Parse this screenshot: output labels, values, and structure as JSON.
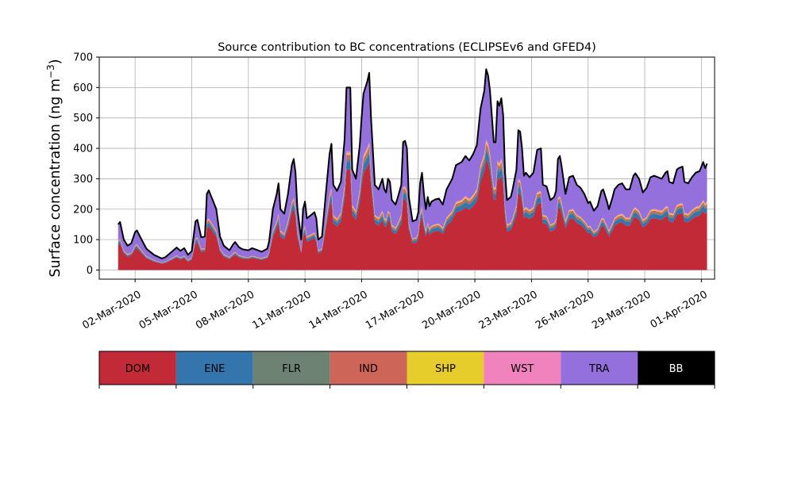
{
  "chart_data": {
    "type": "area",
    "title": "Source contribution to BC concentrations (ECLIPSEv6 and GFED4)",
    "ylabel": "Surface concentration (ng m",
    "ylabel_superscript": "−3",
    "ylabel_close": ")",
    "ylim": [
      -30,
      700
    ],
    "yticks": [
      0,
      100,
      200,
      300,
      400,
      500,
      600,
      700
    ],
    "xlim_days": [
      0.1,
      32.7
    ],
    "xticks": [
      {
        "label": "02-Mar-2020",
        "day": 2
      },
      {
        "label": "05-Mar-2020",
        "day": 5
      },
      {
        "label": "08-Mar-2020",
        "day": 8
      },
      {
        "label": "11-Mar-2020",
        "day": 11
      },
      {
        "label": "14-Mar-2020",
        "day": 14
      },
      {
        "label": "17-Mar-2020",
        "day": 17
      },
      {
        "label": "20-Mar-2020",
        "day": 20
      },
      {
        "label": "23-Mar-2020",
        "day": 23
      },
      {
        "label": "26-Mar-2020",
        "day": 26
      },
      {
        "label": "29-Mar-2020",
        "day": 29
      },
      {
        "label": "01-Apr-2020",
        "day": 32
      }
    ],
    "grid": true,
    "stacked": true,
    "total_points": [
      [
        1.1,
        150
      ],
      [
        1.2,
        158
      ],
      [
        1.4,
        100
      ],
      [
        1.6,
        80
      ],
      [
        1.8,
        88
      ],
      [
        2.0,
        125
      ],
      [
        2.1,
        130
      ],
      [
        2.3,
        105
      ],
      [
        2.6,
        70
      ],
      [
        3.0,
        50
      ],
      [
        3.4,
        38
      ],
      [
        3.6,
        42
      ],
      [
        4.0,
        63
      ],
      [
        4.2,
        74
      ],
      [
        4.4,
        63
      ],
      [
        4.6,
        72
      ],
      [
        4.8,
        50
      ],
      [
        5.0,
        62
      ],
      [
        5.2,
        160
      ],
      [
        5.3,
        165
      ],
      [
        5.5,
        108
      ],
      [
        5.7,
        110
      ],
      [
        5.8,
        250
      ],
      [
        5.9,
        262
      ],
      [
        6.1,
        232
      ],
      [
        6.3,
        200
      ],
      [
        6.5,
        110
      ],
      [
        6.7,
        80
      ],
      [
        7.0,
        65
      ],
      [
        7.2,
        85
      ],
      [
        7.3,
        92
      ],
      [
        7.5,
        75
      ],
      [
        7.7,
        68
      ],
      [
        8.0,
        65
      ],
      [
        8.2,
        72
      ],
      [
        8.5,
        65
      ],
      [
        8.7,
        60
      ],
      [
        9.0,
        70
      ],
      [
        9.1,
        95
      ],
      [
        9.3,
        200
      ],
      [
        9.5,
        250
      ],
      [
        9.6,
        285
      ],
      [
        9.7,
        200
      ],
      [
        9.9,
        185
      ],
      [
        10.1,
        250
      ],
      [
        10.3,
        345
      ],
      [
        10.4,
        365
      ],
      [
        10.5,
        320
      ],
      [
        10.6,
        200
      ],
      [
        10.8,
        100
      ],
      [
        10.9,
        200
      ],
      [
        11.0,
        225
      ],
      [
        11.1,
        170
      ],
      [
        11.3,
        180
      ],
      [
        11.5,
        190
      ],
      [
        11.6,
        170
      ],
      [
        11.7,
        100
      ],
      [
        11.9,
        110
      ],
      [
        12.1,
        250
      ],
      [
        12.3,
        380
      ],
      [
        12.4,
        415
      ],
      [
        12.5,
        280
      ],
      [
        12.7,
        260
      ],
      [
        12.9,
        290
      ],
      [
        13.1,
        430
      ],
      [
        13.2,
        600
      ],
      [
        13.4,
        600
      ],
      [
        13.5,
        330
      ],
      [
        13.7,
        300
      ],
      [
        13.9,
        410
      ],
      [
        14.0,
        500
      ],
      [
        14.1,
        580
      ],
      [
        14.3,
        620
      ],
      [
        14.4,
        648
      ],
      [
        14.5,
        500
      ],
      [
        14.7,
        280
      ],
      [
        14.9,
        265
      ],
      [
        15.1,
        300
      ],
      [
        15.2,
        265
      ],
      [
        15.3,
        255
      ],
      [
        15.4,
        300
      ],
      [
        15.5,
        290
      ],
      [
        15.6,
        230
      ],
      [
        15.8,
        215
      ],
      [
        15.9,
        235
      ],
      [
        16.1,
        280
      ],
      [
        16.2,
        420
      ],
      [
        16.3,
        425
      ],
      [
        16.4,
        400
      ],
      [
        16.5,
        240
      ],
      [
        16.7,
        160
      ],
      [
        16.9,
        165
      ],
      [
        17.0,
        190
      ],
      [
        17.1,
        285
      ],
      [
        17.2,
        320
      ],
      [
        17.3,
        250
      ],
      [
        17.4,
        200
      ],
      [
        17.5,
        240
      ],
      [
        17.6,
        210
      ],
      [
        17.7,
        225
      ],
      [
        17.9,
        232
      ],
      [
        18.1,
        235
      ],
      [
        18.3,
        215
      ],
      [
        18.5,
        265
      ],
      [
        18.8,
        300
      ],
      [
        19.0,
        345
      ],
      [
        19.3,
        355
      ],
      [
        19.5,
        375
      ],
      [
        19.7,
        360
      ],
      [
        19.9,
        380
      ],
      [
        20.1,
        410
      ],
      [
        20.3,
        530
      ],
      [
        20.5,
        590
      ],
      [
        20.6,
        660
      ],
      [
        20.7,
        640
      ],
      [
        20.8,
        590
      ],
      [
        21.0,
        420
      ],
      [
        21.1,
        420
      ],
      [
        21.2,
        555
      ],
      [
        21.3,
        540
      ],
      [
        21.4,
        565
      ],
      [
        21.5,
        510
      ],
      [
        21.6,
        320
      ],
      [
        21.7,
        230
      ],
      [
        21.9,
        240
      ],
      [
        22.0,
        265
      ],
      [
        22.2,
        330
      ],
      [
        22.3,
        460
      ],
      [
        22.4,
        455
      ],
      [
        22.5,
        400
      ],
      [
        22.6,
        310
      ],
      [
        22.7,
        320
      ],
      [
        22.9,
        305
      ],
      [
        23.1,
        320
      ],
      [
        23.3,
        395
      ],
      [
        23.5,
        400
      ],
      [
        23.6,
        280
      ],
      [
        23.8,
        275
      ],
      [
        24.0,
        230
      ],
      [
        24.2,
        240
      ],
      [
        24.3,
        260
      ],
      [
        24.4,
        365
      ],
      [
        24.5,
        375
      ],
      [
        24.6,
        340
      ],
      [
        24.8,
        250
      ],
      [
        25.0,
        305
      ],
      [
        25.2,
        310
      ],
      [
        25.4,
        280
      ],
      [
        25.6,
        270
      ],
      [
        25.8,
        250
      ],
      [
        26.0,
        220
      ],
      [
        26.1,
        225
      ],
      [
        26.3,
        195
      ],
      [
        26.5,
        210
      ],
      [
        26.7,
        260
      ],
      [
        26.8,
        265
      ],
      [
        27.0,
        225
      ],
      [
        27.1,
        200
      ],
      [
        27.3,
        240
      ],
      [
        27.4,
        265
      ],
      [
        27.6,
        280
      ],
      [
        27.8,
        285
      ],
      [
        28.0,
        265
      ],
      [
        28.2,
        265
      ],
      [
        28.4,
        310
      ],
      [
        28.5,
        318
      ],
      [
        28.7,
        300
      ],
      [
        28.9,
        255
      ],
      [
        29.1,
        270
      ],
      [
        29.3,
        305
      ],
      [
        29.5,
        310
      ],
      [
        29.7,
        305
      ],
      [
        29.9,
        300
      ],
      [
        30.1,
        320
      ],
      [
        30.2,
        325
      ],
      [
        30.3,
        290
      ],
      [
        30.5,
        285
      ],
      [
        30.7,
        330
      ],
      [
        30.8,
        335
      ],
      [
        31.0,
        340
      ],
      [
        31.1,
        290
      ],
      [
        31.3,
        285
      ],
      [
        31.5,
        305
      ],
      [
        31.7,
        320
      ],
      [
        31.9,
        325
      ],
      [
        32.0,
        340
      ],
      [
        32.1,
        355
      ],
      [
        32.2,
        335
      ],
      [
        32.3,
        350
      ]
    ],
    "series": [
      {
        "name": "DOM",
        "color": "#c22a37",
        "fraction": 0.55
      },
      {
        "name": "ENE",
        "color": "#3575ad",
        "fraction": 0.045
      },
      {
        "name": "FLR",
        "color": "#6d8272",
        "fraction": 0.015
      },
      {
        "name": "IND",
        "color": "#cd6558",
        "fraction": 0.02
      },
      {
        "name": "SHP",
        "color": "#e7cd2b",
        "fraction": 0.01
      },
      {
        "name": "WST",
        "color": "#f083bd",
        "fraction": 0.01
      },
      {
        "name": "TRA",
        "color": "#9370db",
        "fraction": 0.35
      },
      {
        "name": "BB",
        "color": "#000000",
        "fraction": 0.0
      }
    ],
    "total_line_color": "#000000"
  },
  "legend": {
    "items": [
      {
        "label": "DOM",
        "color": "#c22a37",
        "text_color": "#000000"
      },
      {
        "label": "ENE",
        "color": "#3575ad",
        "text_color": "#000000"
      },
      {
        "label": "FLR",
        "color": "#6d8272",
        "text_color": "#000000"
      },
      {
        "label": "IND",
        "color": "#cd6558",
        "text_color": "#000000"
      },
      {
        "label": "SHP",
        "color": "#e7cd2b",
        "text_color": "#000000"
      },
      {
        "label": "WST",
        "color": "#f083bd",
        "text_color": "#000000"
      },
      {
        "label": "TRA",
        "color": "#9370db",
        "text_color": "#000000"
      },
      {
        "label": "BB",
        "color": "#000000",
        "text_color": "#ffffff"
      }
    ]
  }
}
